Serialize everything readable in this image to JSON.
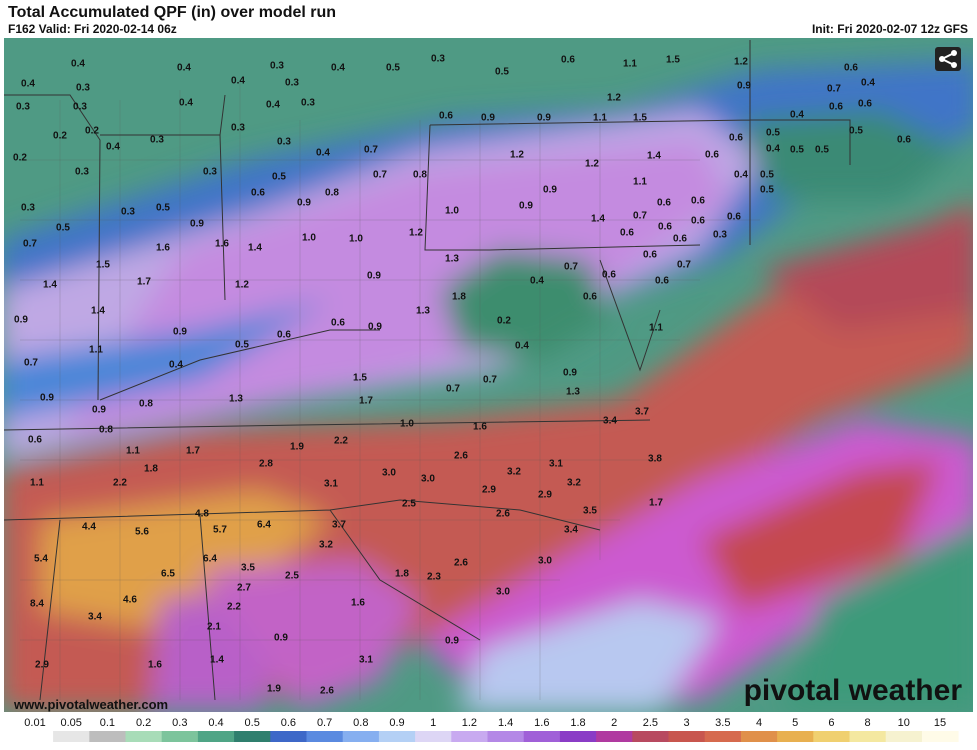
{
  "header": {
    "title": "Total Accumulated QPF (in) over model run",
    "valid": "F162 Valid: Fri 2020-02-14 06z",
    "init": "Init: Fri 2020-02-07 12z GFS"
  },
  "map": {
    "labels": [
      "0.4",
      "0.4",
      "0.3",
      "0.3",
      "0.3",
      "0.2",
      "0.2",
      "0.4",
      "0.3",
      "0.2",
      "0.3",
      "0.3",
      "0.5",
      "0.3",
      "0.5",
      "0.3",
      "0.7",
      "0.4",
      "0.4",
      "0.4",
      "0.3",
      "0.3",
      "0.4",
      "0.3",
      "0.3",
      "0.3",
      "0.4",
      "0.4",
      "0.5",
      "0.3",
      "0.5",
      "0.6",
      "1.1",
      "1.5",
      "1.2",
      "0.9",
      "0.6",
      "0.4",
      "0.7",
      "0.6",
      "0.6",
      "1.2",
      "0.6",
      "0.9",
      "0.9",
      "1.1",
      "1.5",
      "0.7",
      "0.5",
      "0.7",
      "0.8",
      "1.2",
      "1.2",
      "1.4",
      "0.6",
      "0.6",
      "0.4",
      "0.5",
      "0.4",
      "0.5",
      "0.5",
      "0.5",
      "0.6",
      "0.4",
      "0.5",
      "0.5",
      "1.1",
      "0.9",
      "0.6",
      "0.9",
      "0.8",
      "1.0",
      "0.9",
      "1.4",
      "0.7",
      "0.6",
      "0.6",
      "0.6",
      "0.6",
      "0.6",
      "0.6",
      "0.6",
      "0.3",
      "0.9",
      "1.6",
      "1.4",
      "1.0",
      "1.0",
      "1.2",
      "1.6",
      "1.5",
      "1.7",
      "1.4",
      "1.2",
      "0.9",
      "1.3",
      "0.7",
      "0.6",
      "0.6",
      "0.7",
      "0.4",
      "0.6",
      "0.6",
      "1.8",
      "1.3",
      "0.2",
      "0.4",
      "1.1",
      "0.9",
      "1.4",
      "1.1",
      "0.9",
      "0.6",
      "0.5",
      "0.4",
      "0.6",
      "0.9",
      "0.7",
      "1.5",
      "0.7",
      "0.7",
      "0.9",
      "1.3",
      "0.9",
      "0.8",
      "1.3",
      "1.7",
      "0.9",
      "0.8",
      "0.6",
      "1.0",
      "1.6",
      "3.4",
      "3.7",
      "1.1",
      "1.7",
      "1.9",
      "2.2",
      "2.6",
      "1.8",
      "2.8",
      "3.0",
      "3.0",
      "3.2",
      "3.1",
      "3.8",
      "1.1",
      "2.2",
      "3.1",
      "3.2",
      "2.9",
      "2.9",
      "2.5",
      "4.8",
      "3.5",
      "1.7",
      "2.6",
      "4.4",
      "5.6",
      "5.7",
      "6.4",
      "3.7",
      "3.4",
      "3.2",
      "5.4",
      "6.4",
      "3.5",
      "2.6",
      "3.0",
      "6.5",
      "2.5",
      "1.8",
      "2.3",
      "2.7",
      "4.6",
      "8.4",
      "2.2",
      "1.6",
      "3.0",
      "3.4",
      "2.1",
      "0.9",
      "0.9",
      "2.9",
      "1.6",
      "1.4",
      "3.1",
      "1.9",
      "2.6"
    ],
    "website": "www.pivotalweather.com",
    "logo": "pivotal weather"
  },
  "legend": {
    "ticks": [
      0.01,
      0.05,
      0.1,
      0.2,
      0.3,
      0.4,
      0.5,
      0.6,
      0.7,
      0.8,
      0.9,
      1,
      1.2,
      1.4,
      1.6,
      1.8,
      2,
      2.5,
      3,
      3.5,
      4,
      5,
      6,
      8,
      10,
      15
    ],
    "colors": [
      "#ffffff",
      "#e6e6e6",
      "#bdbdbd",
      "#a8dcb8",
      "#7cc49c",
      "#4fa586",
      "#2f7f6e",
      "#3d68c8",
      "#5a8ae0",
      "#86aff0",
      "#b4d0f5",
      "#ddd6f5",
      "#c8aaf0",
      "#b488e6",
      "#a060d8",
      "#8a3cc6",
      "#b03aa0",
      "#b84a60",
      "#c8564e",
      "#d66a4e",
      "#e0904a",
      "#e8b050",
      "#f0d070",
      "#f4e8a0",
      "#f6f2d0",
      "#fffbe8"
    ]
  }
}
